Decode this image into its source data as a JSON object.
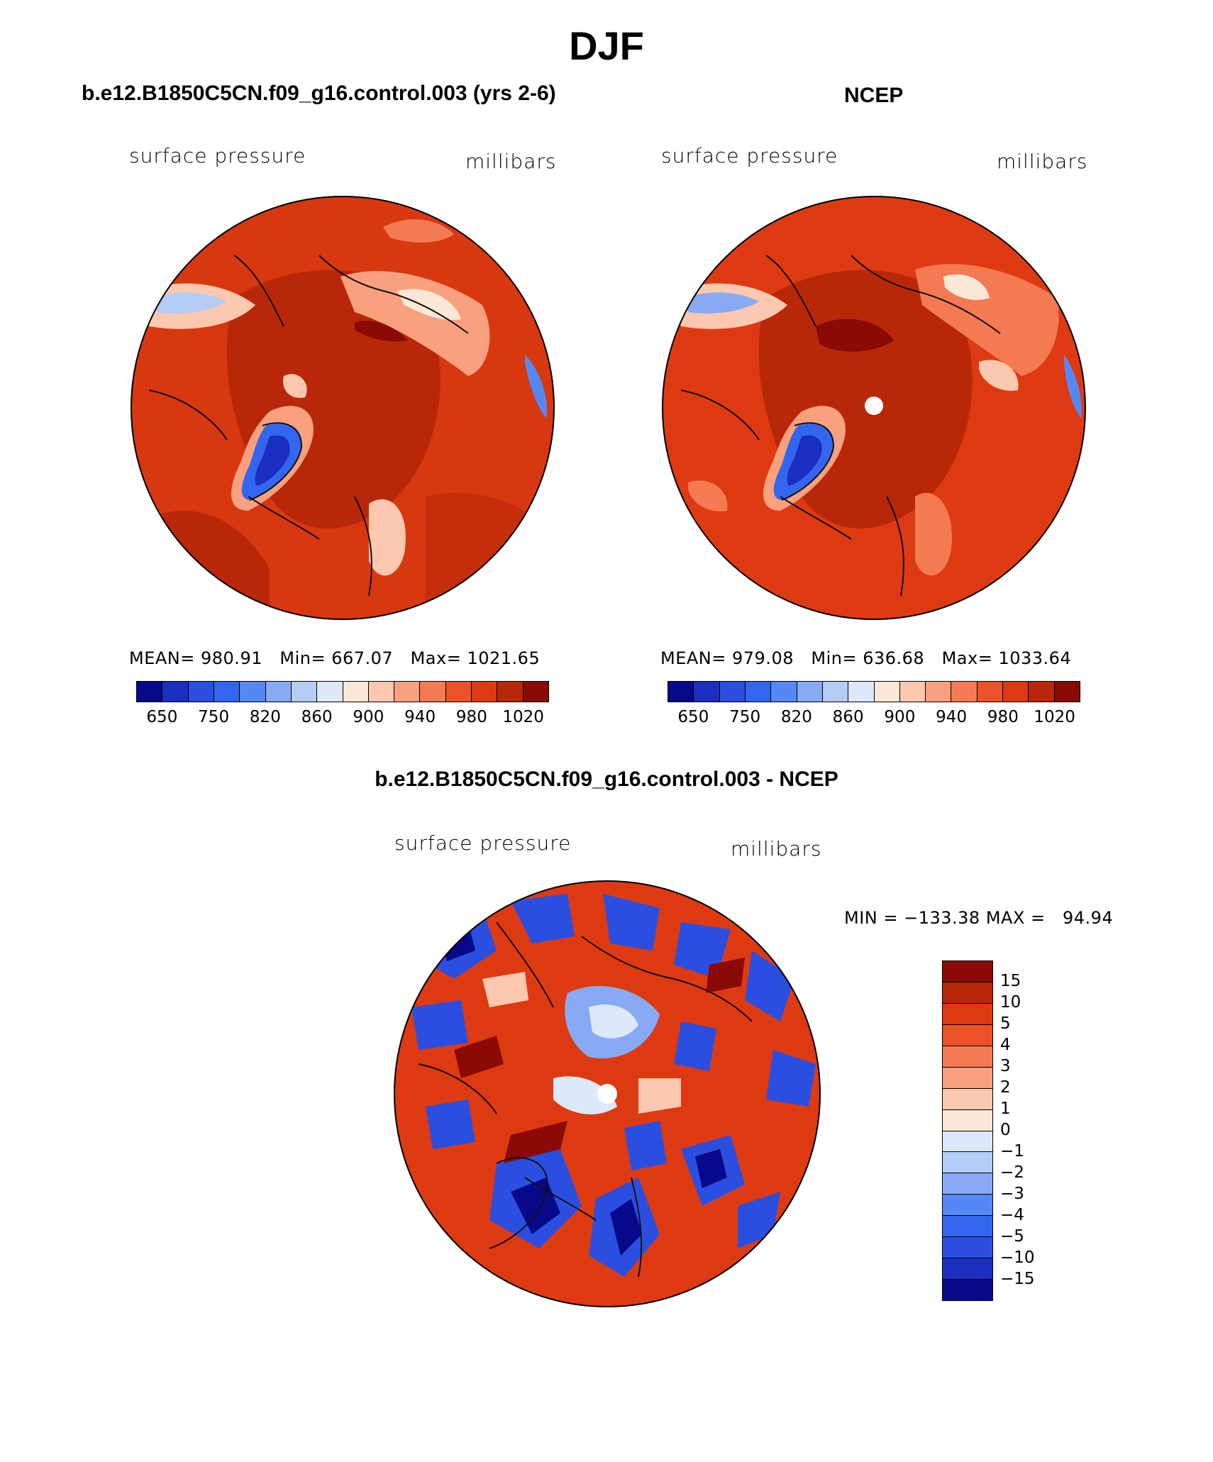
{
  "title": "DJF",
  "panels": [
    {
      "id": "model",
      "title": "b.e12.B1850C5CN.f09_g16.control.003 (yrs 2-6)",
      "variable": "surface pressure",
      "units": "millibars",
      "stats": {
        "mean_label": "MEAN=",
        "mean": "980.91",
        "min_label": "Min=",
        "min": "667.07",
        "max_label": "Max=",
        "max": "1021.65"
      }
    },
    {
      "id": "obs",
      "title": "NCEP",
      "variable": "surface pressure",
      "units": "millibars",
      "stats": {
        "mean_label": "MEAN=",
        "mean": "979.08",
        "min_label": "Min=",
        "min": "636.68",
        "max_label": "Max=",
        "max": "1033.64"
      }
    }
  ],
  "difference": {
    "title": "b.e12.B1850C5CN.f09_g16.control.003 - NCEP",
    "variable": "surface pressure",
    "units": "millibars",
    "minmax_text": "MIN = −133.38 MAX =   94.94"
  },
  "colorbar_main": {
    "ticks": [
      "650",
      "750",
      "820",
      "860",
      "900",
      "940",
      "980",
      "1020"
    ],
    "colors": [
      "#08088a",
      "#1a2fbf",
      "#2a4fe0",
      "#3366ee",
      "#5588f5",
      "#88aaf5",
      "#b5ccf5",
      "#dde8fa",
      "#fde8d8",
      "#fcc8b0",
      "#f9a07e",
      "#f47a52",
      "#ec5228",
      "#de3a12",
      "#b82808",
      "#8a0a06"
    ]
  },
  "colorbar_diff": {
    "ticks": [
      "15",
      "10",
      "5",
      "4",
      "3",
      "2",
      "1",
      "0",
      "−1",
      "−2",
      "−3",
      "−4",
      "−5",
      "−10",
      "−15"
    ],
    "colors": [
      "#8a0a06",
      "#b82808",
      "#de3a12",
      "#ec5228",
      "#f47a52",
      "#f9a07e",
      "#fcc8b0",
      "#fde8d8",
      "#dde8fa",
      "#b5ccf5",
      "#88aaf5",
      "#5588f5",
      "#3366ee",
      "#2a4fe0",
      "#1a2fbf",
      "#08088a"
    ]
  }
}
